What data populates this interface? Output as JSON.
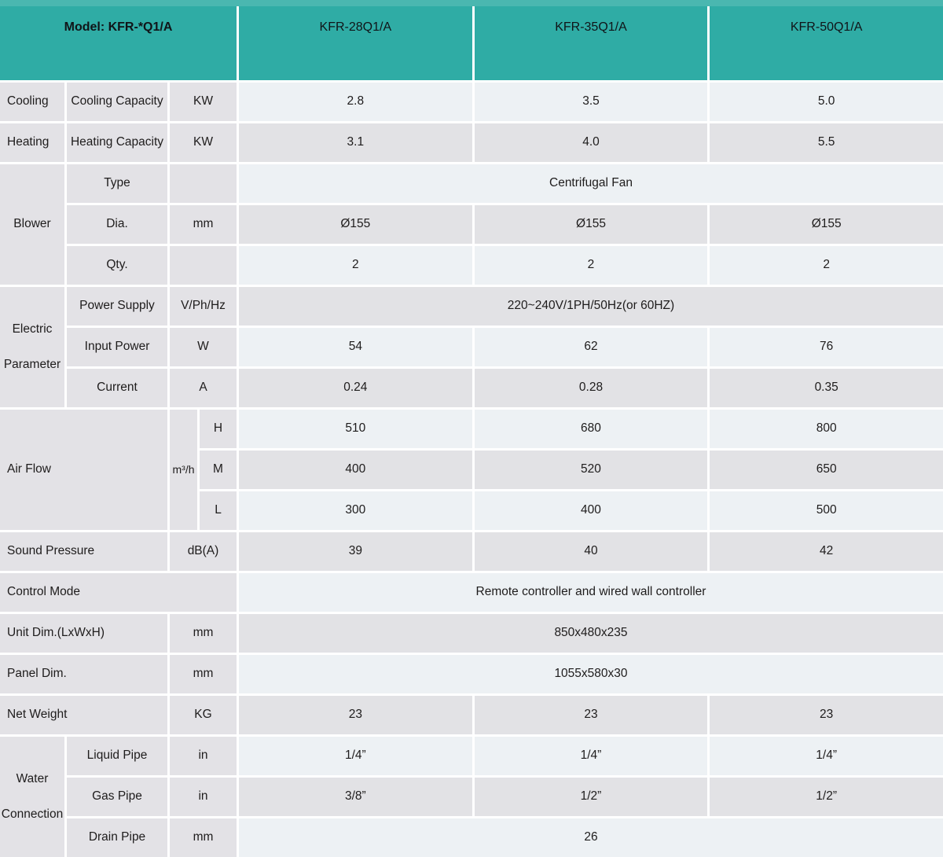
{
  "colors": {
    "teal": "#2FACA5",
    "teal-light": "#4AB7B0",
    "label-bg": "#E3E2E6",
    "row-light": "#EDF1F4",
    "row-dark": "#E2E2E5",
    "gap": "#FFFFFF",
    "text": "#1E1C1C"
  },
  "header": {
    "model_label": "Model: KFR-*Q1/A",
    "columns": [
      "KFR-28Q1/A",
      "KFR-35Q1/A",
      "KFR-50Q1/A"
    ]
  },
  "spec": {
    "cooling": {
      "group": "Cooling",
      "param": "Cooling Capacity",
      "unit": "KW",
      "values": [
        "2.8",
        "3.5",
        "5.0"
      ]
    },
    "heating": {
      "group": "Heating",
      "param": "Heating Capacity",
      "unit": "KW",
      "values": [
        "3.1",
        "4.0",
        "5.5"
      ]
    },
    "blower": {
      "group": "Blower",
      "type": {
        "param": "Type",
        "unit": "",
        "value": "Centrifugal Fan"
      },
      "dia": {
        "param": "Dia.",
        "unit": "mm",
        "values": [
          "Ø155",
          "Ø155",
          "Ø155"
        ]
      },
      "qty": {
        "param": "Qty.",
        "unit": "",
        "values": [
          "2",
          "2",
          "2"
        ]
      }
    },
    "electric": {
      "group": "Electric Parameter",
      "power_supply": {
        "param": "Power Supply",
        "unit": "V/Ph/Hz",
        "value": "220~240V/1PH/50Hz(or 60HZ)"
      },
      "input_power": {
        "param": "Input Power",
        "unit": "W",
        "values": [
          "54",
          "62",
          "76"
        ]
      },
      "current": {
        "param": "Current",
        "unit": "A",
        "values": [
          "0.24",
          "0.28",
          "0.35"
        ]
      }
    },
    "air_flow": {
      "group": "Air Flow",
      "unit": "m³/h",
      "high": {
        "param": "H",
        "values": [
          "510",
          "680",
          "800"
        ]
      },
      "medium": {
        "param": "M",
        "values": [
          "400",
          "520",
          "650"
        ]
      },
      "low": {
        "param": "L",
        "values": [
          "300",
          "400",
          "500"
        ]
      }
    },
    "sound_pressure": {
      "label": "Sound Pressure",
      "unit": "dB(A)",
      "values": [
        "39",
        "40",
        "42"
      ]
    },
    "control_mode": {
      "label": "Control Mode",
      "value": "Remote controller and wired wall controller"
    },
    "unit_dim": {
      "label": "Unit Dim.(LxWxH)",
      "unit": "mm",
      "value": "850x480x235"
    },
    "panel_dim": {
      "label": "Panel Dim.",
      "unit": "mm",
      "value": "1055x580x30"
    },
    "net_weight": {
      "label": "Net Weight",
      "unit": "KG",
      "values": [
        "23",
        "23",
        "23"
      ]
    },
    "water_connection": {
      "group": "Water Connection",
      "liquid_pipe": {
        "param": "Liquid Pipe",
        "unit": "in",
        "values": [
          "1/4”",
          "1/4”",
          "1/4”"
        ]
      },
      "gas_pipe": {
        "param": "Gas Pipe",
        "unit": "in",
        "values": [
          "3/8”",
          "1/2”",
          "1/2”"
        ]
      },
      "drain_pipe": {
        "param": "Drain Pipe",
        "unit": "mm",
        "value": "26"
      }
    }
  }
}
